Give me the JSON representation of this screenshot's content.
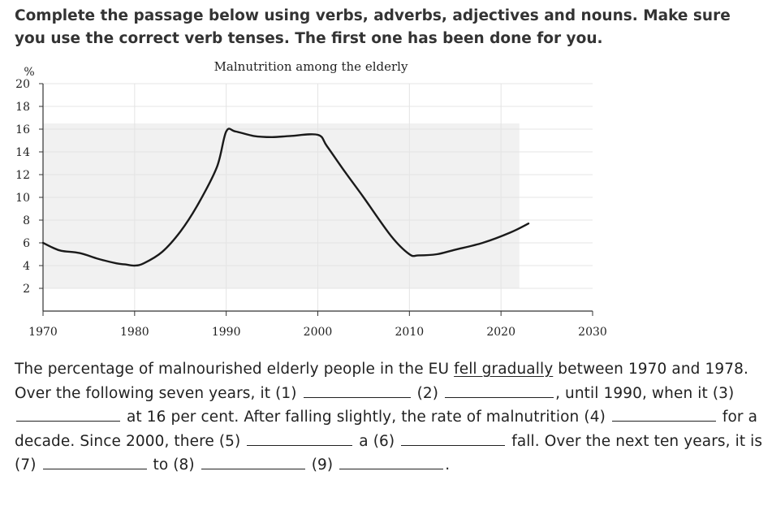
{
  "instructions": "Complete the passage below using verbs, adverbs, adjectives and nouns. Make sure you use the correct verb tenses. The first one has been done for you.",
  "chart_data": {
    "type": "line",
    "title": "Malnutrition among the elderly",
    "ylabel": "%",
    "xlabel": "",
    "xlim": [
      1970,
      2030
    ],
    "ylim": [
      0,
      20
    ],
    "xticks": [
      1970,
      1980,
      1990,
      2000,
      2010,
      2020,
      2030
    ],
    "yticks": [
      2,
      4,
      6,
      8,
      10,
      12,
      14,
      16,
      18,
      20
    ],
    "grid": true,
    "series": [
      {
        "x": [
          1970,
          1971,
          1972,
          1974,
          1976,
          1978,
          1979,
          1980,
          1981,
          1983,
          1985,
          1987,
          1989,
          1990,
          1991,
          1993,
          1995,
          1997,
          2000,
          2001,
          2003,
          2005,
          2008,
          2010,
          2011,
          2013,
          2015,
          2018,
          2021,
          2023
        ],
        "y": [
          6.0,
          5.6,
          5.3,
          5.1,
          4.6,
          4.2,
          4.1,
          4.0,
          4.2,
          5.2,
          7.0,
          9.5,
          12.7,
          15.8,
          15.8,
          15.4,
          15.3,
          15.4,
          15.5,
          14.5,
          12.2,
          10.0,
          6.6,
          5.0,
          4.9,
          5.0,
          5.4,
          6.0,
          6.9,
          7.7
        ]
      }
    ]
  },
  "passage": {
    "t1": "The percentage of malnourished elderly people in the EU ",
    "example": "fell gradually",
    "t2": " between 1970 and 1978. Over the following seven years, it ",
    "n1": "(1)",
    "n2": "(2)",
    "t3": ", until 1990, when it ",
    "n3": "(3)",
    "t4": " at 16 per cent. After falling slightly, the rate of malnutrition ",
    "n4": "(4)",
    "t5": " for a decade. Since 2000, there ",
    "n5": "(5)",
    "t6": " a ",
    "n6": "(6)",
    "t7": " fall. Over the next ten years, it is ",
    "n7": "(7)",
    "t8": " to ",
    "n8": "(8)",
    "n9": "(9)",
    "t9": "."
  }
}
